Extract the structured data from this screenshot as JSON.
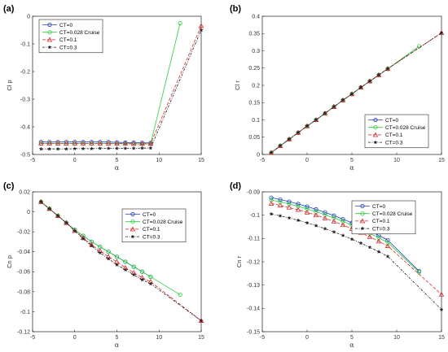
{
  "chart_data": [
    {
      "type": "line",
      "panel_label": "(a)",
      "ylabel": "Cl p",
      "xlabel": "α",
      "xlim": [
        -5,
        15
      ],
      "ylim": [
        -0.5,
        0
      ],
      "xticks": [
        -5,
        0,
        5,
        10,
        15
      ],
      "yticks": [
        -0.5,
        -0.4,
        -0.3,
        -0.2,
        -0.1,
        0
      ],
      "grid": true,
      "legend": "top-left",
      "series": [
        {
          "name": "CT=0",
          "color": "#1f3fbf",
          "dash": "",
          "marker": "circle",
          "x": [
            -4,
            -3,
            -2,
            -1,
            0,
            1,
            2,
            3,
            4,
            5,
            6,
            7,
            8,
            9
          ],
          "y": [
            -0.455,
            -0.455,
            -0.455,
            -0.455,
            -0.455,
            -0.455,
            -0.455,
            -0.455,
            -0.455,
            -0.456,
            -0.457,
            -0.457,
            -0.458,
            -0.458
          ]
        },
        {
          "name": "CT=0.028  Cruise",
          "color": "#2ecc40",
          "dash": "",
          "marker": "circle",
          "x": [
            -4,
            -3,
            -2,
            -1,
            0,
            1,
            2,
            3,
            4,
            5,
            6,
            7,
            8,
            9,
            12.5
          ],
          "y": [
            -0.46,
            -0.46,
            -0.46,
            -0.46,
            -0.46,
            -0.46,
            -0.46,
            -0.46,
            -0.46,
            -0.461,
            -0.461,
            -0.462,
            -0.462,
            -0.462,
            -0.025
          ]
        },
        {
          "name": "CT=0.1",
          "color": "#d62728",
          "dash": "4,2",
          "marker": "triangle",
          "x": [
            -4,
            -3,
            -2,
            -1,
            0,
            1,
            2,
            3,
            4,
            5,
            6,
            7,
            8,
            9,
            15
          ],
          "y": [
            -0.46,
            -0.46,
            -0.46,
            -0.46,
            -0.46,
            -0.46,
            -0.46,
            -0.46,
            -0.46,
            -0.46,
            -0.46,
            -0.461,
            -0.461,
            -0.461,
            -0.035
          ]
        },
        {
          "name": "CT=0.3",
          "color": "#222222",
          "dash": "3,1.5,1,1.5",
          "marker": "star",
          "x": [
            -4,
            -3,
            -2,
            -1,
            0,
            1,
            2,
            3,
            4,
            5,
            6,
            7,
            8,
            9,
            15
          ],
          "y": [
            -0.48,
            -0.48,
            -0.48,
            -0.48,
            -0.479,
            -0.479,
            -0.479,
            -0.478,
            -0.478,
            -0.478,
            -0.478,
            -0.478,
            -0.477,
            -0.477,
            -0.05
          ]
        }
      ]
    },
    {
      "type": "line",
      "panel_label": "(b)",
      "ylabel": "Cl r",
      "xlabel": "α",
      "xlim": [
        -5,
        15
      ],
      "ylim": [
        0,
        0.4
      ],
      "xticks": [
        -5,
        0,
        5,
        10,
        15
      ],
      "yticks": [
        0,
        0.05,
        0.1,
        0.15,
        0.2,
        0.25,
        0.3,
        0.35,
        0.4
      ],
      "grid": true,
      "legend": "bottom-right",
      "series": [
        {
          "name": "CT=0",
          "color": "#1f3fbf",
          "dash": "",
          "marker": "circle",
          "x": [
            -4,
            -3,
            -2,
            -1,
            0,
            1,
            2,
            3,
            4,
            5,
            6,
            7,
            8,
            9
          ],
          "y": [
            0.005,
            0.025,
            0.044,
            0.063,
            0.082,
            0.1,
            0.119,
            0.138,
            0.157,
            0.175,
            0.194,
            0.212,
            0.23,
            0.248
          ]
        },
        {
          "name": "CT=0.028  Cruise",
          "color": "#2ecc40",
          "dash": "",
          "marker": "circle",
          "x": [
            -4,
            -3,
            -2,
            -1,
            0,
            1,
            2,
            3,
            4,
            5,
            6,
            7,
            8,
            9,
            12.5
          ],
          "y": [
            0.005,
            0.025,
            0.044,
            0.063,
            0.082,
            0.1,
            0.119,
            0.138,
            0.157,
            0.175,
            0.194,
            0.212,
            0.23,
            0.248,
            0.313
          ]
        },
        {
          "name": "CT=0.1",
          "color": "#d62728",
          "dash": "4,2",
          "marker": "triangle",
          "x": [
            -4,
            -3,
            -2,
            -1,
            0,
            1,
            2,
            3,
            4,
            5,
            6,
            7,
            8,
            9,
            15
          ],
          "y": [
            0.005,
            0.025,
            0.044,
            0.063,
            0.082,
            0.1,
            0.119,
            0.138,
            0.157,
            0.175,
            0.194,
            0.212,
            0.23,
            0.248,
            0.352
          ]
        },
        {
          "name": "CT=0.3",
          "color": "#222222",
          "dash": "3,1.5,1,1.5",
          "marker": "star",
          "x": [
            -4,
            -3,
            -2,
            -1,
            0,
            1,
            2,
            3,
            4,
            5,
            6,
            7,
            8,
            9,
            15
          ],
          "y": [
            0.005,
            0.025,
            0.044,
            0.063,
            0.082,
            0.1,
            0.119,
            0.138,
            0.157,
            0.175,
            0.194,
            0.212,
            0.23,
            0.248,
            0.352
          ]
        }
      ]
    },
    {
      "type": "line",
      "panel_label": "(c)",
      "ylabel": "Cn p",
      "xlabel": "α",
      "xlim": [
        -5,
        15
      ],
      "ylim": [
        -0.12,
        0.02
      ],
      "xticks": [
        -5,
        0,
        5,
        10,
        15
      ],
      "yticks": [
        -0.12,
        -0.1,
        -0.08,
        -0.06,
        -0.04,
        -0.02,
        0,
        0.02
      ],
      "grid": true,
      "legend": "top-right",
      "series": [
        {
          "name": "CT=0",
          "color": "#1f3fbf",
          "dash": "",
          "marker": "circle",
          "x": [
            -4,
            -3,
            -2,
            -1,
            0,
            1,
            2,
            3,
            4,
            5,
            6,
            7,
            8,
            9
          ],
          "y": [
            0.01,
            0.003,
            -0.004,
            -0.011,
            -0.018,
            -0.024,
            -0.03,
            -0.035,
            -0.04,
            -0.045,
            -0.05,
            -0.055,
            -0.06,
            -0.065
          ]
        },
        {
          "name": "CT=0.028  Cruise",
          "color": "#2ecc40",
          "dash": "",
          "marker": "circle",
          "x": [
            -4,
            -3,
            -2,
            -1,
            0,
            1,
            2,
            3,
            4,
            5,
            6,
            7,
            8,
            9,
            12.5
          ],
          "y": [
            0.01,
            0.003,
            -0.004,
            -0.011,
            -0.018,
            -0.024,
            -0.03,
            -0.035,
            -0.04,
            -0.045,
            -0.05,
            -0.055,
            -0.06,
            -0.065,
            -0.083
          ]
        },
        {
          "name": "CT=0.1",
          "color": "#d62728",
          "dash": "4,2",
          "marker": "triangle",
          "x": [
            -4,
            -3,
            -2,
            -1,
            0,
            1,
            2,
            3,
            4,
            5,
            6,
            7,
            8,
            9,
            15
          ],
          "y": [
            0.01,
            0.003,
            -0.004,
            -0.011,
            -0.019,
            -0.026,
            -0.033,
            -0.039,
            -0.045,
            -0.05,
            -0.056,
            -0.061,
            -0.066,
            -0.07,
            -0.109
          ]
        },
        {
          "name": "CT=0.3",
          "color": "#222222",
          "dash": "3,1.5,1,1.5",
          "marker": "star",
          "x": [
            -4,
            -3,
            -2,
            -1,
            0,
            1,
            2,
            3,
            4,
            5,
            6,
            7,
            8,
            9,
            15
          ],
          "y": [
            0.01,
            0.003,
            -0.004,
            -0.011,
            -0.019,
            -0.027,
            -0.034,
            -0.041,
            -0.047,
            -0.053,
            -0.058,
            -0.063,
            -0.068,
            -0.072,
            -0.109
          ]
        }
      ]
    },
    {
      "type": "line",
      "panel_label": "(d)",
      "ylabel": "Cn r",
      "xlabel": "α",
      "xlim": [
        -5,
        15
      ],
      "ylim": [
        -0.15,
        -0.09
      ],
      "xticks": [
        -5,
        0,
        5,
        10,
        15
      ],
      "yticks": [
        -0.15,
        -0.14,
        -0.13,
        -0.12,
        -0.11,
        -0.1,
        -0.09
      ],
      "grid": true,
      "legend": "top-right",
      "series": [
        {
          "name": "CT=0",
          "color": "#1f3fbf",
          "dash": "",
          "marker": "circle",
          "x": [
            -4,
            -3,
            -2,
            -1,
            0,
            1,
            2,
            3,
            4,
            5,
            6,
            7,
            8,
            9,
            12.5
          ],
          "y": [
            -0.0925,
            -0.0933,
            -0.0942,
            -0.0952,
            -0.0963,
            -0.0975,
            -0.0988,
            -0.1002,
            -0.1017,
            -0.1033,
            -0.105,
            -0.1068,
            -0.1087,
            -0.1107,
            -0.124
          ]
        },
        {
          "name": "CT=0.028  Cruise",
          "color": "#2ecc40",
          "dash": "",
          "marker": "circle",
          "x": [
            -4,
            -3,
            -2,
            -1,
            0,
            1,
            2,
            3,
            4,
            5,
            6,
            7,
            8,
            9,
            12.5
          ],
          "y": [
            -0.0935,
            -0.0943,
            -0.0952,
            -0.0962,
            -0.0973,
            -0.0985,
            -0.0998,
            -0.1012,
            -0.1027,
            -0.1043,
            -0.106,
            -0.1078,
            -0.1097,
            -0.1117,
            -0.1245
          ]
        },
        {
          "name": "CT=0.1",
          "color": "#d62728",
          "dash": "4,2",
          "marker": "triangle",
          "x": [
            -4,
            -3,
            -2,
            -1,
            0,
            1,
            2,
            3,
            4,
            5,
            6,
            7,
            8,
            9,
            15
          ],
          "y": [
            -0.095,
            -0.0958,
            -0.0967,
            -0.0977,
            -0.0988,
            -0.1,
            -0.1013,
            -0.1027,
            -0.1042,
            -0.1058,
            -0.1075,
            -0.1093,
            -0.1112,
            -0.1132,
            -0.134
          ]
        },
        {
          "name": "CT=0.3",
          "color": "#222222",
          "dash": "3,1.5,1,1.5",
          "marker": "star",
          "x": [
            -4,
            -3,
            -2,
            -1,
            0,
            1,
            2,
            3,
            4,
            5,
            6,
            7,
            8,
            9,
            15
          ],
          "y": [
            -0.0995,
            -0.1003,
            -0.1012,
            -0.1022,
            -0.1033,
            -0.1045,
            -0.1058,
            -0.1072,
            -0.1087,
            -0.1103,
            -0.112,
            -0.1138,
            -0.1157,
            -0.1177,
            -0.1405
          ]
        }
      ]
    }
  ]
}
